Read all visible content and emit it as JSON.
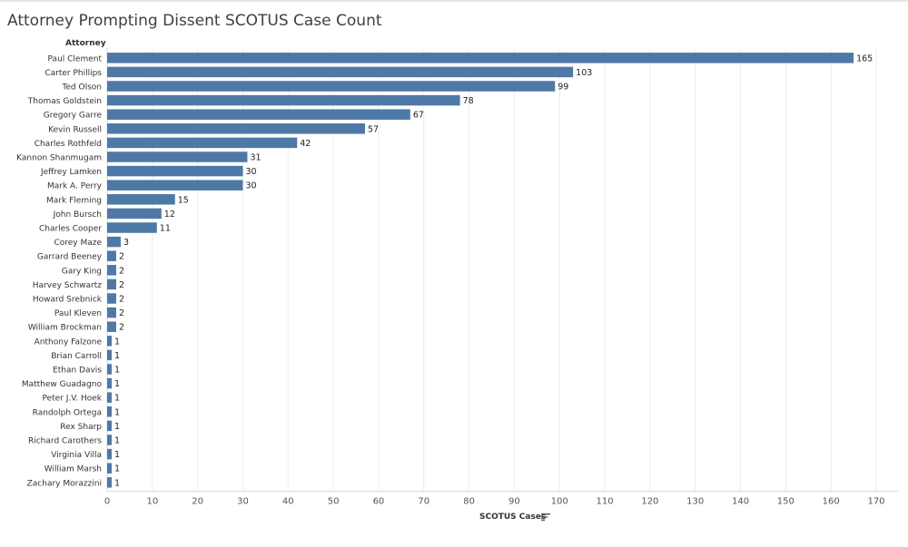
{
  "title": "Attorney Prompting Dissent SCOTUS Case Count",
  "colors": {
    "bar": "#4e79a7",
    "grid": "#ececec",
    "text": "#333333",
    "axis": "#d9d9d9"
  },
  "chart_data": {
    "type": "bar",
    "orientation": "horizontal",
    "row_header": "Attorney",
    "xlabel": "SCOTUS Cases",
    "xlim": [
      0,
      170
    ],
    "x_ticks": [
      0,
      10,
      20,
      30,
      40,
      50,
      60,
      70,
      80,
      90,
      100,
      110,
      120,
      130,
      140,
      150,
      160,
      170
    ],
    "grid": true,
    "categories": [
      "Paul Clement",
      "Carter Phillips",
      "Ted Olson",
      "Thomas Goldstein",
      "Gregory Garre",
      "Kevin Russell",
      "Charles Rothfeld",
      "Kannon Shanmugam",
      "Jeffrey Lamken",
      "Mark A. Perry",
      "Mark Fleming",
      "John Bursch",
      "Charles Cooper",
      "Corey Maze",
      "Garrard Beeney",
      "Gary King",
      "Harvey Schwartz",
      "Howard Srebnick",
      "Paul Kleven",
      "William Brockman",
      "Anthony Falzone",
      "Brian Carroll",
      "Ethan Davis",
      "Matthew Guadagno",
      "Peter J.V. Hoek",
      "Randolph Ortega",
      "Rex Sharp",
      "Richard Carothers",
      "Virginia Villa",
      "William Marsh",
      "Zachary Morazzini"
    ],
    "values": [
      165,
      103,
      99,
      78,
      67,
      57,
      42,
      31,
      30,
      30,
      15,
      12,
      11,
      3,
      2,
      2,
      2,
      2,
      2,
      2,
      1,
      1,
      1,
      1,
      1,
      1,
      1,
      1,
      1,
      1,
      1
    ]
  },
  "sort_icon": "sort-descending-icon"
}
